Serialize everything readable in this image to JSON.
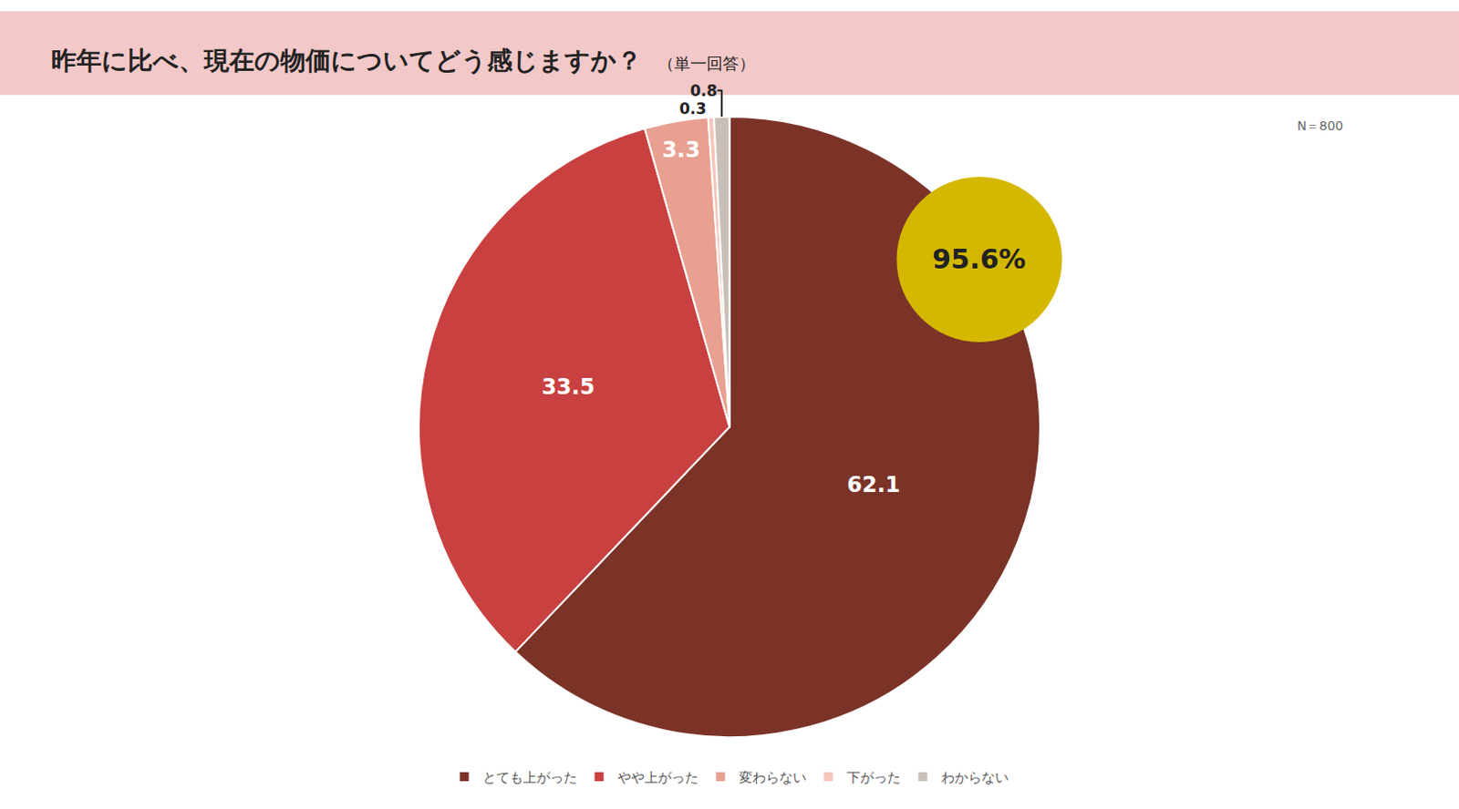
{
  "chart_data": {
    "type": "pie",
    "title": "昨年に比べ、現在の物価についてどう感じますか？",
    "subtitle": "（単一回答）",
    "categories": [
      "とても上がった",
      "やや上がった",
      "変わらない",
      "下がった",
      "わからない"
    ],
    "values": [
      62.1,
      33.5,
      3.3,
      0.3,
      0.8
    ],
    "colors": [
      "#7b3328",
      "#c94040",
      "#e8a090",
      "#f5c6bc",
      "#c8c0b8"
    ],
    "data_labels": true,
    "annotations": [
      "N＝800",
      "95.6%"
    ],
    "legend": "bottom"
  }
}
